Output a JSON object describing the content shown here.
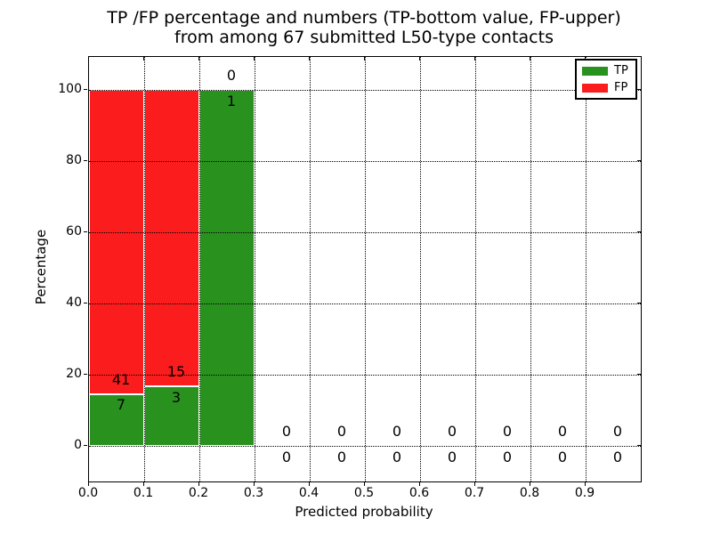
{
  "chart_data": {
    "type": "bar",
    "stacked": true,
    "title_lines": [
      "TP /FP percentage and numbers (TP-bottom value, FP-upper)",
      "from among 67 submitted L50-type contacts"
    ],
    "xlabel": "Predicted probability",
    "ylabel": "Percentage",
    "total_contacts": 67,
    "bin_width": 0.1,
    "bin_starts": [
      0.0,
      0.1,
      0.2,
      0.3,
      0.4,
      0.5,
      0.6,
      0.7,
      0.8,
      0.9
    ],
    "series": [
      {
        "name": "TP",
        "color": "#29921f",
        "counts": [
          7,
          3,
          1,
          0,
          0,
          0,
          0,
          0,
          0,
          0
        ],
        "percentages": [
          14.583,
          16.667,
          100,
          0,
          0,
          0,
          0,
          0,
          0,
          0
        ]
      },
      {
        "name": "FP",
        "color": "#fb1d1d",
        "counts": [
          41,
          15,
          0,
          0,
          0,
          0,
          0,
          0,
          0,
          0
        ],
        "percentages": [
          85.417,
          83.333,
          0,
          0,
          0,
          0,
          0,
          0,
          0,
          0
        ]
      }
    ],
    "xticks": [
      "0.0",
      "0.1",
      "0.2",
      "0.3",
      "0.4",
      "0.5",
      "0.6",
      "0.7",
      "0.8",
      "0.9"
    ],
    "yticks": [
      "0",
      "20",
      "40",
      "60",
      "80",
      "100"
    ],
    "ytick_values": [
      0,
      20,
      40,
      60,
      80,
      100
    ],
    "xlim": [
      0.0,
      1.0
    ],
    "ylim": [
      -10,
      109.25
    ],
    "grid": "dotted-both-axes-over-bars",
    "legend_position": "upper-right",
    "bar_edge_color": "#ffffff"
  }
}
